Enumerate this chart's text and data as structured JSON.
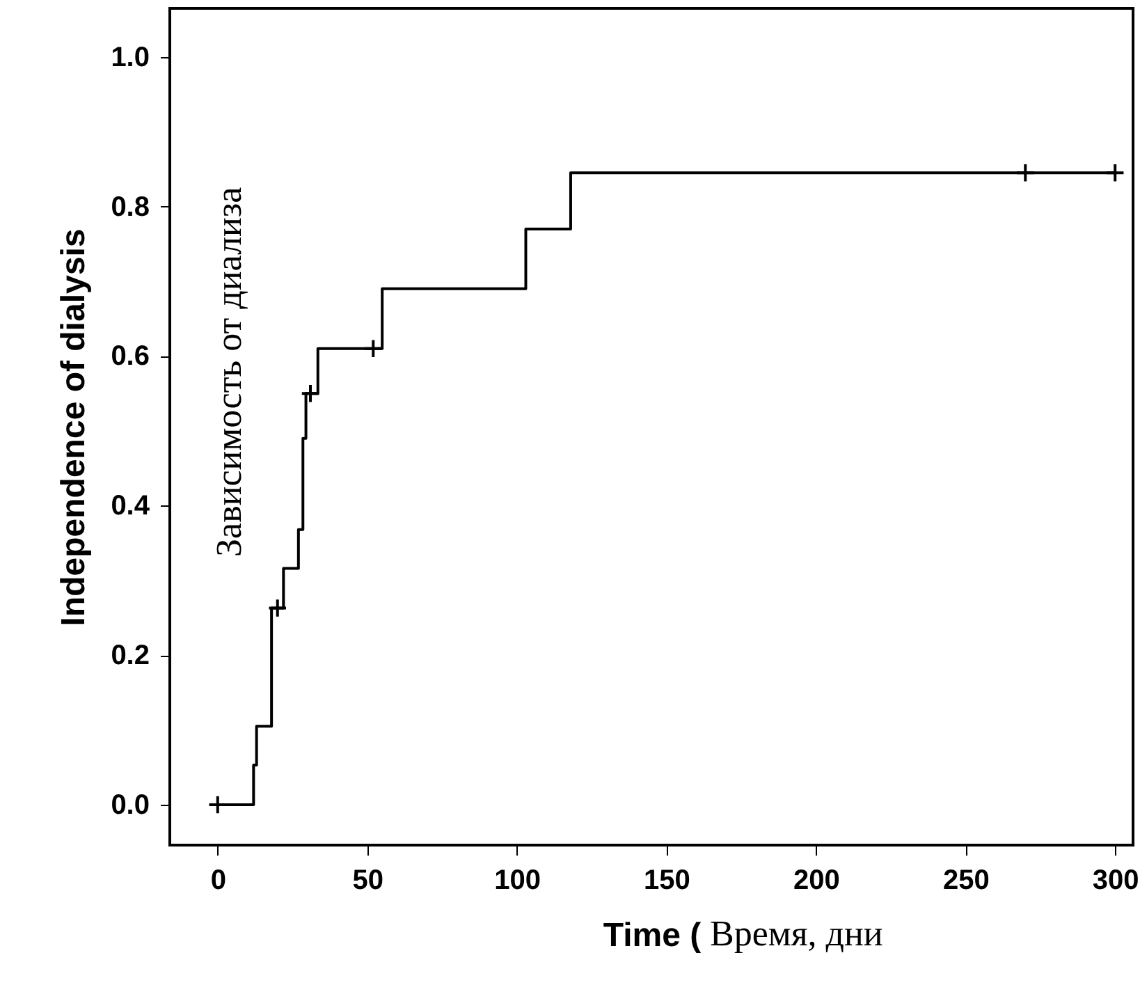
{
  "chart_data": {
    "type": "step",
    "xlabel": "Time (",
    "ylabel": "Independence of dialysis",
    "annotations": [
      "Зависимость от диализа",
      "Время, дни"
    ],
    "xlim": [
      -16,
      306
    ],
    "ylim": [
      -0.054,
      1.065
    ],
    "xticks": [
      0,
      50,
      100,
      150,
      200,
      250,
      300
    ],
    "yticks": [
      {
        "value": 0,
        "label": "0.0"
      },
      {
        "value": 0.2,
        "label": "0.2"
      },
      {
        "value": 0.4,
        "label": "0.4"
      },
      {
        "value": 0.6,
        "label": "0.6"
      },
      {
        "value": 0.8,
        "label": "0.8"
      },
      {
        "value": 1,
        "label": "1.0"
      }
    ],
    "grid": false,
    "series": [
      {
        "color": "#000000",
        "marker": "none",
        "x": [
          0,
          12,
          13,
          18,
          22,
          27,
          28.5,
          29.5,
          33.5,
          55,
          103,
          118,
          300
        ],
        "values": [
          0,
          0.053,
          0.105,
          0.263,
          0.316,
          0.368,
          0.49,
          0.55,
          0.61,
          0.69,
          0.77,
          0.845,
          0.845
        ]
      },
      {
        "type": "scatter",
        "color": "#000000",
        "marker": "cross",
        "x": [
          0,
          20,
          31,
          52,
          270,
          300
        ],
        "values": [
          0,
          0.263,
          0.55,
          0.61,
          0.845,
          0.845
        ]
      }
    ]
  }
}
